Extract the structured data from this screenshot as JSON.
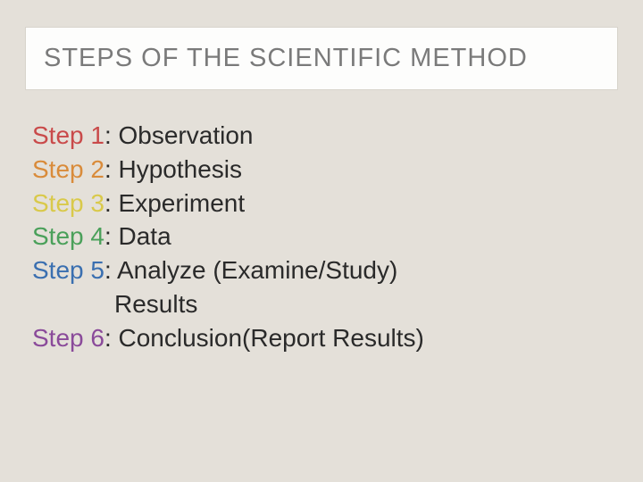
{
  "title": "STEPS OF THE SCIENTIFIC METHOD",
  "title_color": "#7a7a7a",
  "title_fontsize": 29,
  "background_color": "#e4e0d9",
  "title_box_bg": "#fdfdfc",
  "body_fontsize": 28,
  "body_text_color": "#2a2a2a",
  "steps": [
    {
      "label": "Step 1",
      "label_color": "#c94a4a",
      "desc": ": Observation"
    },
    {
      "label": "Step 2",
      "label_color": "#d98b3a",
      "desc": ": Hypothesis"
    },
    {
      "label": "Step 3",
      "label_color": "#d9c94a",
      "desc": ": Experiment"
    },
    {
      "label": "Step 4",
      "label_color": "#4aa05a",
      "desc": ": Data"
    },
    {
      "label": "Step 5",
      "label_color": "#3a6fb0",
      "desc": ": Analyze (Examine/Study)",
      "cont": "Results"
    },
    {
      "label": "Step 6",
      "label_color": "#8a4a9a",
      "desc": ": Conclusion(Report Results)"
    }
  ]
}
